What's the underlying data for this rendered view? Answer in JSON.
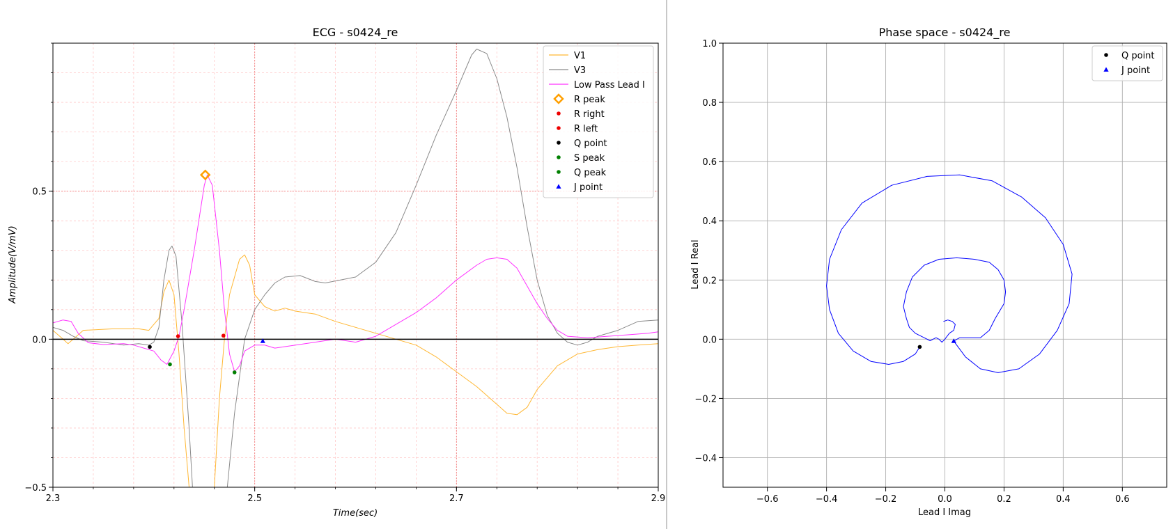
{
  "chart_data": [
    {
      "type": "line",
      "title": "ECG - s0424_re",
      "xlabel": "Time(sec)",
      "ylabel": "Amplitude(V/mV)",
      "xlim": [
        2.3,
        2.9
      ],
      "ylim": [
        -0.5,
        1.0
      ],
      "x_ticks": [
        2.3,
        2.5,
        2.7,
        2.9
      ],
      "x_tick_labels": [
        "2.3",
        "2.5",
        "2.7",
        "2.9"
      ],
      "y_ticks": [
        -0.5,
        0.0,
        0.5
      ],
      "y_tick_labels": [
        "−0.5",
        "0.0",
        "0.5"
      ],
      "grid": "minor-dashed-pink",
      "legend_position": "top-right",
      "colors": {
        "V1": "#ffb733",
        "V3": "#8a8a8a",
        "low_pass": "#ff33ff",
        "r_peak": "#ff9f00",
        "r_marker": "#ee0000",
        "q_point": "#000000",
        "s_peak": "#008000",
        "j_point": "#0000ff",
        "major_grid": "#f08080",
        "minor_grid": "#ffc8c8"
      },
      "legend": [
        {
          "label": "V1",
          "kind": "line",
          "color": "#ffb733"
        },
        {
          "label": "V3",
          "kind": "line",
          "color": "#8a8a8a"
        },
        {
          "label": "Low Pass Lead I",
          "kind": "line",
          "color": "#ff33ff"
        },
        {
          "label": "R peak",
          "kind": "diamond",
          "color": "#ff9f00"
        },
        {
          "label": "R right",
          "kind": "dot",
          "color": "#ee0000"
        },
        {
          "label": "R left",
          "kind": "dot",
          "color": "#ee0000"
        },
        {
          "label": "Q point",
          "kind": "dot",
          "color": "#000000"
        },
        {
          "label": "S peak",
          "kind": "dot",
          "color": "#008000"
        },
        {
          "label": "Q peak",
          "kind": "dot",
          "color": "#008000"
        },
        {
          "label": "J point",
          "kind": "triangle",
          "color": "#0000ff"
        }
      ],
      "series": [
        {
          "name": "V1",
          "points": [
            [
              2.3,
              0.03
            ],
            [
              2.31,
              0.0
            ],
            [
              2.315,
              -0.015
            ],
            [
              2.33,
              0.03
            ],
            [
              2.36,
              0.035
            ],
            [
              2.385,
              0.035
            ],
            [
              2.395,
              0.03
            ],
            [
              2.405,
              0.07
            ],
            [
              2.41,
              0.16
            ],
            [
              2.415,
              0.2
            ],
            [
              2.42,
              0.15
            ],
            [
              2.425,
              -0.05
            ],
            [
              2.43,
              -0.3
            ],
            [
              2.435,
              -0.5
            ],
            [
              2.44,
              -0.7
            ],
            [
              2.455,
              -0.7
            ],
            [
              2.46,
              -0.5
            ],
            [
              2.465,
              -0.2
            ],
            [
              2.47,
              0.0
            ],
            [
              2.475,
              0.15
            ],
            [
              2.485,
              0.27
            ],
            [
              2.49,
              0.285
            ],
            [
              2.495,
              0.25
            ],
            [
              2.5,
              0.15
            ],
            [
              2.51,
              0.11
            ],
            [
              2.52,
              0.095
            ],
            [
              2.53,
              0.105
            ],
            [
              2.54,
              0.095
            ],
            [
              2.55,
              0.09
            ],
            [
              2.56,
              0.085
            ],
            [
              2.58,
              0.06
            ],
            [
              2.6,
              0.04
            ],
            [
              2.62,
              0.02
            ],
            [
              2.64,
              0.0
            ],
            [
              2.66,
              -0.02
            ],
            [
              2.68,
              -0.06
            ],
            [
              2.7,
              -0.11
            ],
            [
              2.72,
              -0.16
            ],
            [
              2.74,
              -0.22
            ],
            [
              2.75,
              -0.25
            ],
            [
              2.76,
              -0.255
            ],
            [
              2.77,
              -0.23
            ],
            [
              2.78,
              -0.17
            ],
            [
              2.8,
              -0.09
            ],
            [
              2.82,
              -0.05
            ],
            [
              2.84,
              -0.035
            ],
            [
              2.86,
              -0.025
            ],
            [
              2.88,
              -0.02
            ],
            [
              2.9,
              -0.015
            ]
          ]
        },
        {
          "name": "V3",
          "points": [
            [
              2.3,
              0.04
            ],
            [
              2.31,
              0.03
            ],
            [
              2.32,
              0.01
            ],
            [
              2.33,
              -0.005
            ],
            [
              2.35,
              -0.01
            ],
            [
              2.37,
              -0.02
            ],
            [
              2.385,
              -0.015
            ],
            [
              2.395,
              -0.02
            ],
            [
              2.4,
              -0.01
            ],
            [
              2.405,
              0.04
            ],
            [
              2.41,
              0.2
            ],
            [
              2.415,
              0.3
            ],
            [
              2.418,
              0.315
            ],
            [
              2.422,
              0.28
            ],
            [
              2.428,
              0.05
            ],
            [
              2.435,
              -0.3
            ],
            [
              2.44,
              -0.6
            ],
            [
              2.47,
              -0.6
            ],
            [
              2.48,
              -0.25
            ],
            [
              2.49,
              0.0
            ],
            [
              2.5,
              0.1
            ],
            [
              2.51,
              0.15
            ],
            [
              2.52,
              0.19
            ],
            [
              2.53,
              0.21
            ],
            [
              2.545,
              0.215
            ],
            [
              2.56,
              0.195
            ],
            [
              2.57,
              0.19
            ],
            [
              2.585,
              0.2
            ],
            [
              2.6,
              0.21
            ],
            [
              2.62,
              0.26
            ],
            [
              2.64,
              0.36
            ],
            [
              2.66,
              0.52
            ],
            [
              2.68,
              0.69
            ],
            [
              2.7,
              0.84
            ],
            [
              2.71,
              0.92
            ],
            [
              2.715,
              0.96
            ],
            [
              2.72,
              0.98
            ],
            [
              2.73,
              0.965
            ],
            [
              2.74,
              0.88
            ],
            [
              2.75,
              0.75
            ],
            [
              2.76,
              0.58
            ],
            [
              2.77,
              0.38
            ],
            [
              2.78,
              0.2
            ],
            [
              2.79,
              0.08
            ],
            [
              2.8,
              0.02
            ],
            [
              2.81,
              -0.01
            ],
            [
              2.82,
              -0.02
            ],
            [
              2.83,
              -0.01
            ],
            [
              2.84,
              0.01
            ],
            [
              2.86,
              0.03
            ],
            [
              2.88,
              0.06
            ],
            [
              2.9,
              0.065
            ]
          ]
        },
        {
          "name": "Low Pass Lead I",
          "points": [
            [
              2.3,
              0.055
            ],
            [
              2.31,
              0.065
            ],
            [
              2.318,
              0.06
            ],
            [
              2.325,
              0.02
            ],
            [
              2.335,
              -0.012
            ],
            [
              2.35,
              -0.018
            ],
            [
              2.37,
              -0.015
            ],
            [
              2.38,
              -0.02
            ],
            [
              2.39,
              -0.03
            ],
            [
              2.4,
              -0.04
            ],
            [
              2.407,
              -0.07
            ],
            [
              2.413,
              -0.085
            ],
            [
              2.42,
              -0.04
            ],
            [
              2.425,
              0.01
            ],
            [
              2.43,
              0.1
            ],
            [
              2.44,
              0.3
            ],
            [
              2.45,
              0.52
            ],
            [
              2.453,
              0.555
            ],
            [
              2.458,
              0.52
            ],
            [
              2.465,
              0.3
            ],
            [
              2.47,
              0.1
            ],
            [
              2.475,
              -0.05
            ],
            [
              2.48,
              -0.11
            ],
            [
              2.485,
              -0.09
            ],
            [
              2.49,
              -0.04
            ],
            [
              2.5,
              -0.02
            ],
            [
              2.51,
              -0.02
            ],
            [
              2.52,
              -0.03
            ],
            [
              2.53,
              -0.025
            ],
            [
              2.55,
              -0.015
            ],
            [
              2.58,
              0.0
            ],
            [
              2.6,
              -0.01
            ],
            [
              2.62,
              0.01
            ],
            [
              2.64,
              0.05
            ],
            [
              2.66,
              0.09
            ],
            [
              2.68,
              0.14
            ],
            [
              2.7,
              0.2
            ],
            [
              2.72,
              0.25
            ],
            [
              2.73,
              0.27
            ],
            [
              2.74,
              0.275
            ],
            [
              2.75,
              0.27
            ],
            [
              2.76,
              0.24
            ],
            [
              2.77,
              0.18
            ],
            [
              2.78,
              0.12
            ],
            [
              2.79,
              0.07
            ],
            [
              2.8,
              0.03
            ],
            [
              2.81,
              0.01
            ],
            [
              2.83,
              0.005
            ],
            [
              2.85,
              0.01
            ],
            [
              2.87,
              0.015
            ],
            [
              2.89,
              0.02
            ],
            [
              2.9,
              0.025
            ]
          ]
        }
      ],
      "markers": [
        {
          "name": "R peak",
          "x": 2.451,
          "y": 0.555
        },
        {
          "name": "R right",
          "x": 2.424,
          "y": 0.01
        },
        {
          "name": "R left",
          "x": 2.469,
          "y": 0.012
        },
        {
          "name": "Q point",
          "x": 2.396,
          "y": -0.026
        },
        {
          "name": "S peak",
          "x": 2.48,
          "y": -0.112
        },
        {
          "name": "Q peak",
          "x": 2.416,
          "y": -0.085
        },
        {
          "name": "J point",
          "x": 2.508,
          "y": -0.006
        }
      ]
    },
    {
      "type": "line",
      "title": "Phase space - s0424_re",
      "xlabel": "Lead I Imag",
      "ylabel": "Lead I Real",
      "xlim": [
        -0.75,
        0.75
      ],
      "ylim": [
        -0.5,
        1.0
      ],
      "x_ticks": [
        -0.6,
        -0.4,
        -0.2,
        0.0,
        0.2,
        0.4,
        0.6
      ],
      "x_tick_labels": [
        "−0.6",
        "−0.4",
        "−0.2",
        "0.0",
        "0.2",
        "0.4",
        "0.6"
      ],
      "y_ticks": [
        -0.4,
        -0.2,
        0.0,
        0.2,
        0.4,
        0.6,
        0.8,
        1.0
      ],
      "y_tick_labels": [
        "−0.4",
        "−0.2",
        "0.0",
        "0.2",
        "0.4",
        "0.6",
        "0.8",
        "1.0"
      ],
      "grid": "on",
      "legend_position": "top-right",
      "colors": {
        "curve": "#0000ff",
        "q_point": "#000000",
        "j_point": "#0000ff",
        "grid": "#b0b0b0"
      },
      "legend": [
        {
          "label": "Q point",
          "kind": "dot",
          "color": "#000000"
        },
        {
          "label": "J point",
          "kind": "triangle",
          "color": "#0000ff"
        }
      ],
      "series": [
        {
          "name": "Lead I trajectory",
          "points": [
            [
              -0.085,
              -0.026
            ],
            [
              -0.1,
              -0.05
            ],
            [
              -0.14,
              -0.075
            ],
            [
              -0.19,
              -0.085
            ],
            [
              -0.25,
              -0.075
            ],
            [
              -0.31,
              -0.04
            ],
            [
              -0.36,
              0.02
            ],
            [
              -0.39,
              0.1
            ],
            [
              -0.4,
              0.18
            ],
            [
              -0.39,
              0.27
            ],
            [
              -0.35,
              0.37
            ],
            [
              -0.28,
              0.46
            ],
            [
              -0.18,
              0.52
            ],
            [
              -0.06,
              0.55
            ],
            [
              0.05,
              0.555
            ],
            [
              0.16,
              0.535
            ],
            [
              0.26,
              0.48
            ],
            [
              0.34,
              0.41
            ],
            [
              0.4,
              0.32
            ],
            [
              0.43,
              0.22
            ],
            [
              0.42,
              0.12
            ],
            [
              0.38,
              0.03
            ],
            [
              0.32,
              -0.05
            ],
            [
              0.25,
              -0.1
            ],
            [
              0.18,
              -0.113
            ],
            [
              0.12,
              -0.1
            ],
            [
              0.07,
              -0.06
            ],
            [
              0.04,
              -0.02
            ],
            [
              0.03,
              -0.006
            ],
            [
              0.05,
              0.005
            ],
            [
              0.08,
              0.005
            ],
            [
              0.12,
              0.005
            ],
            [
              0.15,
              0.03
            ],
            [
              0.17,
              0.07
            ],
            [
              0.2,
              0.12
            ],
            [
              0.205,
              0.16
            ],
            [
              0.2,
              0.2
            ],
            [
              0.18,
              0.235
            ],
            [
              0.15,
              0.26
            ],
            [
              0.1,
              0.27
            ],
            [
              0.04,
              0.275
            ],
            [
              -0.02,
              0.27
            ],
            [
              -0.07,
              0.25
            ],
            [
              -0.11,
              0.21
            ],
            [
              -0.13,
              0.16
            ],
            [
              -0.14,
              0.11
            ],
            [
              -0.13,
              0.07
            ],
            [
              -0.12,
              0.04
            ],
            [
              -0.1,
              0.02
            ],
            [
              -0.07,
              0.005
            ],
            [
              -0.05,
              -0.005
            ],
            [
              -0.04,
              0.0
            ],
            [
              -0.03,
              0.005
            ],
            [
              -0.02,
              0.0
            ],
            [
              -0.01,
              -0.01
            ],
            [
              0.0,
              0.0
            ],
            [
              0.015,
              0.02
            ],
            [
              0.03,
              0.03
            ],
            [
              0.035,
              0.05
            ],
            [
              0.025,
              0.06
            ],
            [
              0.01,
              0.065
            ],
            [
              -0.005,
              0.06
            ]
          ]
        }
      ],
      "markers": [
        {
          "name": "Q point",
          "x": -0.085,
          "y": -0.026
        },
        {
          "name": "J point",
          "x": 0.03,
          "y": -0.006
        }
      ]
    }
  ]
}
